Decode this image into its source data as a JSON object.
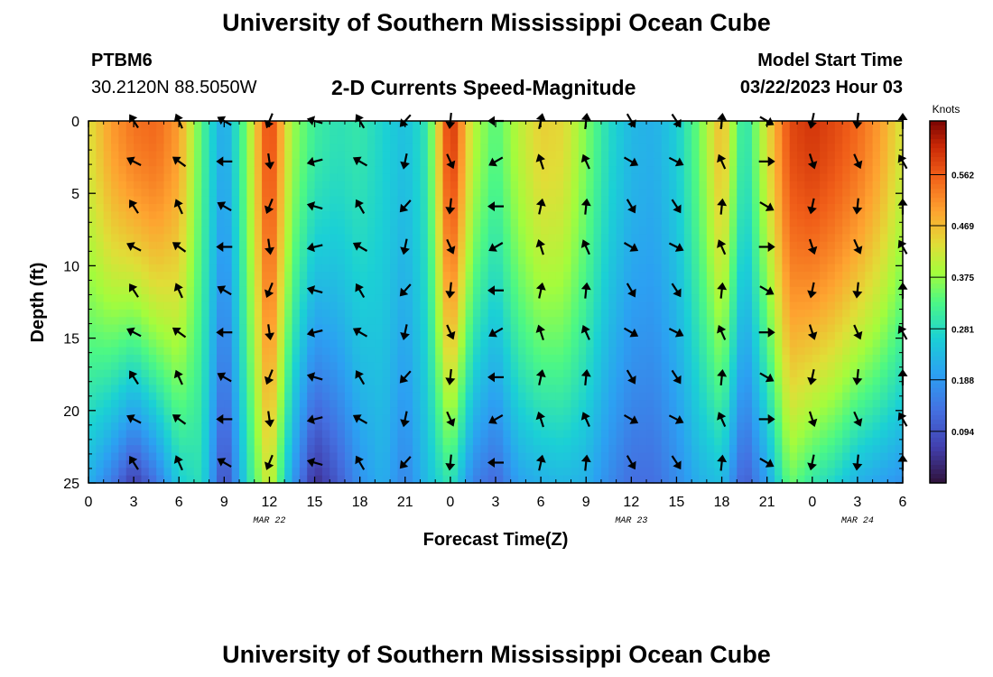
{
  "header": {
    "title": "University of Southern Mississippi Ocean Cube",
    "station": "PTBM6",
    "location": "30.2120N  88.5050W",
    "subtitle": "2-D Currents Speed-Magnitude",
    "model_label": "Model Start Time",
    "model_time": "03/22/2023 Hour 03"
  },
  "footer": {
    "title": "University of Southern Mississippi Ocean Cube"
  },
  "chart_data": {
    "type": "heatmap",
    "title": "2-D Currents Speed-Magnitude",
    "xlabel": "Forecast Time(Z)",
    "ylabel": "Depth (ft)",
    "x_ticks": [
      "0",
      "3",
      "6",
      "9",
      "12",
      "15",
      "18",
      "21",
      "0",
      "3",
      "6",
      "9",
      "12",
      "15",
      "18",
      "21",
      "0",
      "3",
      "6"
    ],
    "x_range_hours": [
      0,
      54
    ],
    "y_ticks": [
      "0",
      "5",
      "10",
      "15",
      "20",
      "25"
    ],
    "ylim": [
      0,
      25
    ],
    "date_labels": [
      {
        "label": "MAR 22",
        "hour": 12
      },
      {
        "label": "MAR 23",
        "hour": 36
      },
      {
        "label": "MAR 24",
        "hour": 51
      }
    ],
    "colorbar": {
      "label": "Knots",
      "ticks": [
        "0.562",
        "0.469",
        "0.375",
        "0.281",
        "0.188",
        "0.094"
      ],
      "tick_values": [
        0.562,
        0.469,
        0.375,
        0.281,
        0.188,
        0.094
      ],
      "range": [
        0,
        0.66
      ]
    },
    "arrow_rows_depth_ft": [
      0,
      2.8,
      5.9,
      8.7,
      11.7,
      14.6,
      17.7,
      20.6,
      23.6
    ],
    "speed_profile": [
      {
        "hour": 0.0,
        "top": 0.43,
        "bottom": 0.22
      },
      {
        "hour": 1.5,
        "top": 0.5,
        "bottom": 0.15
      },
      {
        "hour": 3.0,
        "top": 0.54,
        "bottom": 0.06
      },
      {
        "hour": 4.5,
        "top": 0.55,
        "bottom": 0.14
      },
      {
        "hour": 6.0,
        "top": 0.5,
        "bottom": 0.26
      },
      {
        "hour": 7.5,
        "top": 0.33,
        "bottom": 0.29
      },
      {
        "hour": 9.0,
        "top": 0.2,
        "bottom": 0.07
      },
      {
        "hour": 10.5,
        "top": 0.36,
        "bottom": 0.28
      },
      {
        "hour": 12.0,
        "top": 0.6,
        "bottom": 0.43
      },
      {
        "hour": 13.5,
        "top": 0.38,
        "bottom": 0.2
      },
      {
        "hour": 15.0,
        "top": 0.31,
        "bottom": 0.04
      },
      {
        "hour": 16.5,
        "top": 0.29,
        "bottom": 0.1
      },
      {
        "hour": 18.0,
        "top": 0.3,
        "bottom": 0.18
      },
      {
        "hour": 19.5,
        "top": 0.27,
        "bottom": 0.22
      },
      {
        "hour": 21.0,
        "top": 0.24,
        "bottom": 0.16
      },
      {
        "hour": 22.5,
        "top": 0.3,
        "bottom": 0.24
      },
      {
        "hour": 24.0,
        "top": 0.62,
        "bottom": 0.3
      },
      {
        "hour": 25.5,
        "top": 0.4,
        "bottom": 0.16
      },
      {
        "hour": 27.0,
        "top": 0.33,
        "bottom": 0.12
      },
      {
        "hour": 28.5,
        "top": 0.4,
        "bottom": 0.2
      },
      {
        "hour": 30.0,
        "top": 0.45,
        "bottom": 0.22
      },
      {
        "hour": 31.5,
        "top": 0.44,
        "bottom": 0.23
      },
      {
        "hour": 33.0,
        "top": 0.36,
        "bottom": 0.22
      },
      {
        "hour": 34.5,
        "top": 0.28,
        "bottom": 0.17
      },
      {
        "hour": 36.0,
        "top": 0.23,
        "bottom": 0.13
      },
      {
        "hour": 37.5,
        "top": 0.22,
        "bottom": 0.13
      },
      {
        "hour": 39.0,
        "top": 0.26,
        "bottom": 0.17
      },
      {
        "hour": 40.5,
        "top": 0.35,
        "bottom": 0.22
      },
      {
        "hour": 42.0,
        "top": 0.48,
        "bottom": 0.24
      },
      {
        "hour": 43.5,
        "top": 0.28,
        "bottom": 0.1
      },
      {
        "hour": 45.0,
        "top": 0.43,
        "bottom": 0.2
      },
      {
        "hour": 46.5,
        "top": 0.58,
        "bottom": 0.35
      },
      {
        "hour": 48.0,
        "top": 0.6,
        "bottom": 0.3
      },
      {
        "hour": 49.5,
        "top": 0.58,
        "bottom": 0.27
      },
      {
        "hour": 51.0,
        "top": 0.55,
        "bottom": 0.22
      },
      {
        "hour": 52.5,
        "top": 0.5,
        "bottom": 0.2
      },
      {
        "hour": 54.0,
        "top": 0.42,
        "bottom": 0.18
      }
    ],
    "arrow_directions": [
      {
        "hour": 3,
        "angle_deg": 135
      },
      {
        "hour": 6,
        "angle_deg": 120
      },
      {
        "hour": 9,
        "angle_deg": 150
      },
      {
        "hour": 12,
        "angle_deg": 260
      },
      {
        "hour": 15,
        "angle_deg": 170
      },
      {
        "hour": 18,
        "angle_deg": 120
      },
      {
        "hour": 21,
        "angle_deg": 240
      },
      {
        "hour": 24,
        "angle_deg": 270
      },
      {
        "hour": 27,
        "angle_deg": 180
      },
      {
        "hour": 30,
        "angle_deg": 90
      },
      {
        "hour": 33,
        "angle_deg": 90
      },
      {
        "hour": 36,
        "angle_deg": 300
      },
      {
        "hour": 39,
        "angle_deg": 315
      },
      {
        "hour": 42,
        "angle_deg": 90
      },
      {
        "hour": 45,
        "angle_deg": 330
      },
      {
        "hour": 48,
        "angle_deg": 270
      },
      {
        "hour": 51,
        "angle_deg": 270
      },
      {
        "hour": 54,
        "angle_deg": 90
      }
    ]
  }
}
